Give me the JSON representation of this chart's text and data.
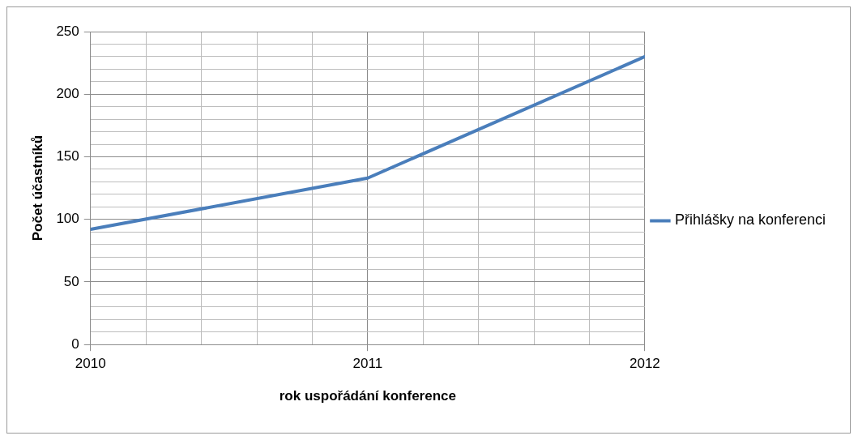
{
  "chart_data": {
    "type": "line",
    "xlabel": "rok uspořádání konference",
    "ylabel": "Počet účastníků",
    "x": [
      2010,
      2011,
      2012
    ],
    "series": [
      {
        "name": "Přihlášky na konferenci",
        "color": "#4a7ebb",
        "values": [
          92,
          133,
          230
        ]
      }
    ],
    "xlim": [
      2010,
      2012
    ],
    "xticks": [
      2010,
      {
        "value": 2010.2,
        "label": null
      },
      {
        "value": 2010.4,
        "label": null
      },
      {
        "value": 2010.6,
        "label": null
      },
      {
        "value": 2010.8,
        "label": null
      },
      2011,
      {
        "value": 2011.2,
        "label": null
      },
      {
        "value": 2011.4,
        "label": null
      },
      {
        "value": 2011.6,
        "label": null
      },
      {
        "value": 2011.8,
        "label": null
      },
      2012
    ],
    "ylim": [
      0,
      250
    ],
    "yticks": [
      0,
      {
        "value": 10,
        "label": null
      },
      {
        "value": 20,
        "label": null
      },
      {
        "value": 30,
        "label": null
      },
      {
        "value": 40,
        "label": null
      },
      50,
      {
        "value": 60,
        "label": null
      },
      {
        "value": 70,
        "label": null
      },
      {
        "value": 80,
        "label": null
      },
      {
        "value": 90,
        "label": null
      },
      100,
      {
        "value": 110,
        "label": null
      },
      {
        "value": 120,
        "label": null
      },
      {
        "value": 130,
        "label": null
      },
      {
        "value": 140,
        "label": null
      },
      150,
      {
        "value": 160,
        "label": null
      },
      {
        "value": 170,
        "label": null
      },
      {
        "value": 180,
        "label": null
      },
      {
        "value": 190,
        "label": null
      },
      200,
      {
        "value": 210,
        "label": null
      },
      {
        "value": 220,
        "label": null
      },
      {
        "value": 230,
        "label": null
      },
      {
        "value": 240,
        "label": null
      },
      250
    ],
    "grid": true,
    "legend": "right",
    "marker": "none",
    "line_style": "solid"
  }
}
